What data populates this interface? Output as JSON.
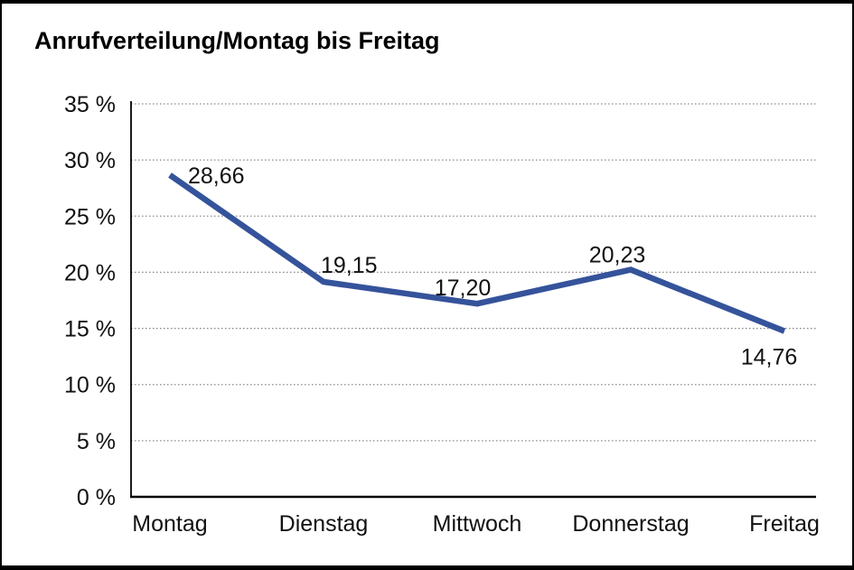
{
  "title": "Anrufverteilung/Montag bis Freitag",
  "colors": {
    "line": "#35539B",
    "grid": "#8a8a8a",
    "axis": "#000000",
    "text": "#111111",
    "background": "#ffffff",
    "border": "#000000"
  },
  "chart_data": {
    "type": "line",
    "title": "Anrufverteilung/Montag bis Freitag",
    "categories": [
      "Montag",
      "Dienstag",
      "Mittwoch",
      "Donnerstag",
      "Freitag"
    ],
    "values": [
      28.66,
      19.15,
      17.2,
      20.23,
      14.76
    ],
    "data_labels": [
      "28,66",
      "19,15",
      "17,20",
      "20,23",
      "14,76"
    ],
    "series_name": "",
    "xlabel": "",
    "ylabel": "",
    "ylim": [
      0,
      35
    ],
    "y_ticks": [
      {
        "value": 35,
        "label": "35 %"
      },
      {
        "value": 30,
        "label": "30 %"
      },
      {
        "value": 25,
        "label": "25 %"
      },
      {
        "value": 20,
        "label": "20 %"
      },
      {
        "value": 15,
        "label": "15 %"
      },
      {
        "value": 10,
        "label": "10 %"
      },
      {
        "value": 5,
        "label": "5 %"
      },
      {
        "value": 0,
        "label": "0 %"
      }
    ],
    "grid": "horizontal-dotted",
    "legend": "none"
  }
}
